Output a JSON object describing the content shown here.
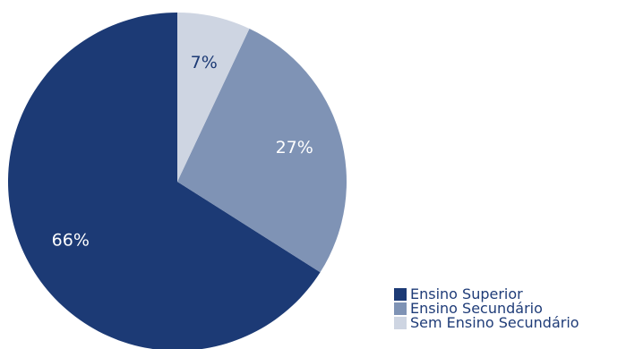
{
  "chart_data": {
    "type": "pie",
    "categories": [
      "Ensino Superior",
      "Ensino Secundário",
      "Sem Ensino Secundário"
    ],
    "values": [
      66,
      27,
      7
    ],
    "data_labels": [
      "66%",
      "27%",
      "7%"
    ],
    "colors": [
      "#1c3a75",
      "#7f93b5",
      "#ced5e2"
    ],
    "label_colors": [
      "#ffffff",
      "#ffffff",
      "#1c3a75"
    ],
    "start": "12 o'clock",
    "direction": "counter-clockwise",
    "legend": {
      "placement": "bottom-right",
      "entries": [
        "Ensino Superior",
        "Ensino Secundário",
        "Sem Ensino Secundário"
      ]
    }
  }
}
